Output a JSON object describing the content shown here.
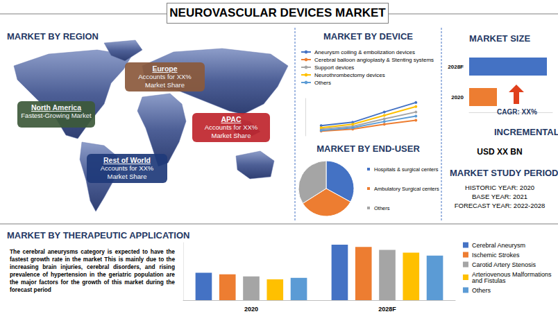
{
  "title": "NEUROVASCULAR DEVICES MARKET",
  "regions": {
    "heading": "MARKET BY REGION",
    "items": [
      {
        "name": "Europe",
        "text": "Accounts for XX% Market Share",
        "color": "#8b5a3c"
      },
      {
        "name": "North America",
        "text": "Fastest-Growing Market",
        "color": "#3d5a3a"
      },
      {
        "name": "APAC",
        "text": "Accounts for XX% Market Share",
        "color": "#c0262d"
      },
      {
        "name": "Rest of World",
        "text": "Accounts for XX% Market Share",
        "color": "#1f3a7a"
      }
    ]
  },
  "incremental_growth": {
    "heading": "INCREMENTAL GROWTH",
    "value": "USD XX BN"
  },
  "study_period": {
    "heading": "MARKET STUDY PERIOD",
    "lines": [
      "HISTORIC YEAR: 2020",
      "BASE YEAR: 2021",
      "FORECAST YEAR: 2022-2028"
    ]
  },
  "chart_data": [
    {
      "type": "line",
      "title": "MARKET BY DEVICE",
      "categories": [
        null,
        null,
        null,
        null
      ],
      "series": [
        {
          "name": "Aneurysm coiling & embolization devices",
          "color": "#4472c4",
          "values": [
            15,
            20,
            35,
            49
          ]
        },
        {
          "name": "Cerebral balloon angioplasty & Stenting systems",
          "color": "#ed7d31",
          "values": [
            7,
            10,
            17,
            23
          ]
        },
        {
          "name": "Support devices",
          "color": "#a5a5a5",
          "values": [
            10,
            14,
            25,
            35
          ]
        },
        {
          "name": "Neurothrombectomy devices",
          "color": "#ffc000",
          "values": [
            12,
            17,
            30,
            43
          ]
        },
        {
          "name": "Others",
          "color": "#5b9bd5",
          "values": [
            8,
            12,
            21,
            29
          ]
        }
      ],
      "ylim": [
        0,
        55
      ],
      "tick_labels": false,
      "grid": false,
      "legend": "top-left",
      "marker": "circle"
    },
    {
      "type": "pie",
      "title": "MARKET BY END-USER",
      "categories": [
        "Hospitals & surgical centers",
        "Ambulatory Surgical centers",
        "Others"
      ],
      "values": [
        33,
        33,
        34
      ],
      "colors": [
        "#4472c4",
        "#ed7d31",
        "#a5a5a5"
      ],
      "legend": "right",
      "data_labels": false
    },
    {
      "type": "bar",
      "title": "MARKET SIZE",
      "orientation": "horizontal",
      "categories": [
        "2028F",
        "2020"
      ],
      "values": [
        84,
        30
      ],
      "colors": [
        "#4472c4",
        "#ed7d31"
      ],
      "xlim": [
        0,
        90
      ],
      "tick_labels": "y",
      "grid": false,
      "annotations": [
        "CAGR: XX%"
      ]
    },
    {
      "type": "bar",
      "title": "MARKET BY THERAPEUTIC APPLICATION",
      "categories": [
        "2020",
        "2028F"
      ],
      "series": [
        {
          "name": "Cerebral Aneurysm",
          "color": "#4472c4",
          "values": [
            38,
            77
          ]
        },
        {
          "name": "Ischemic Strokes",
          "color": "#ed7d31",
          "values": [
            36,
            74
          ]
        },
        {
          "name": "Carotid Artery Stenosis",
          "color": "#a5a5a5",
          "values": [
            33,
            70
          ]
        },
        {
          "name": "Arteriovenous Malformations and Fistulas",
          "color": "#ffc000",
          "values": [
            29,
            66
          ]
        },
        {
          "name": "Others",
          "color": "#5b9bd5",
          "values": [
            31,
            62
          ]
        }
      ],
      "ylim": [
        0,
        80
      ],
      "tick_labels": "x",
      "grid": false,
      "legend": "right",
      "annotations": [
        "The cerebral aneurysms category is expected to have the fastest growth rate in the market This is mainly due to the increasing brain injuries, cerebral disorders, and rising prevalence of hypertension in the geriatric population are the major factors for the growth of this market during the forecast period"
      ]
    }
  ]
}
